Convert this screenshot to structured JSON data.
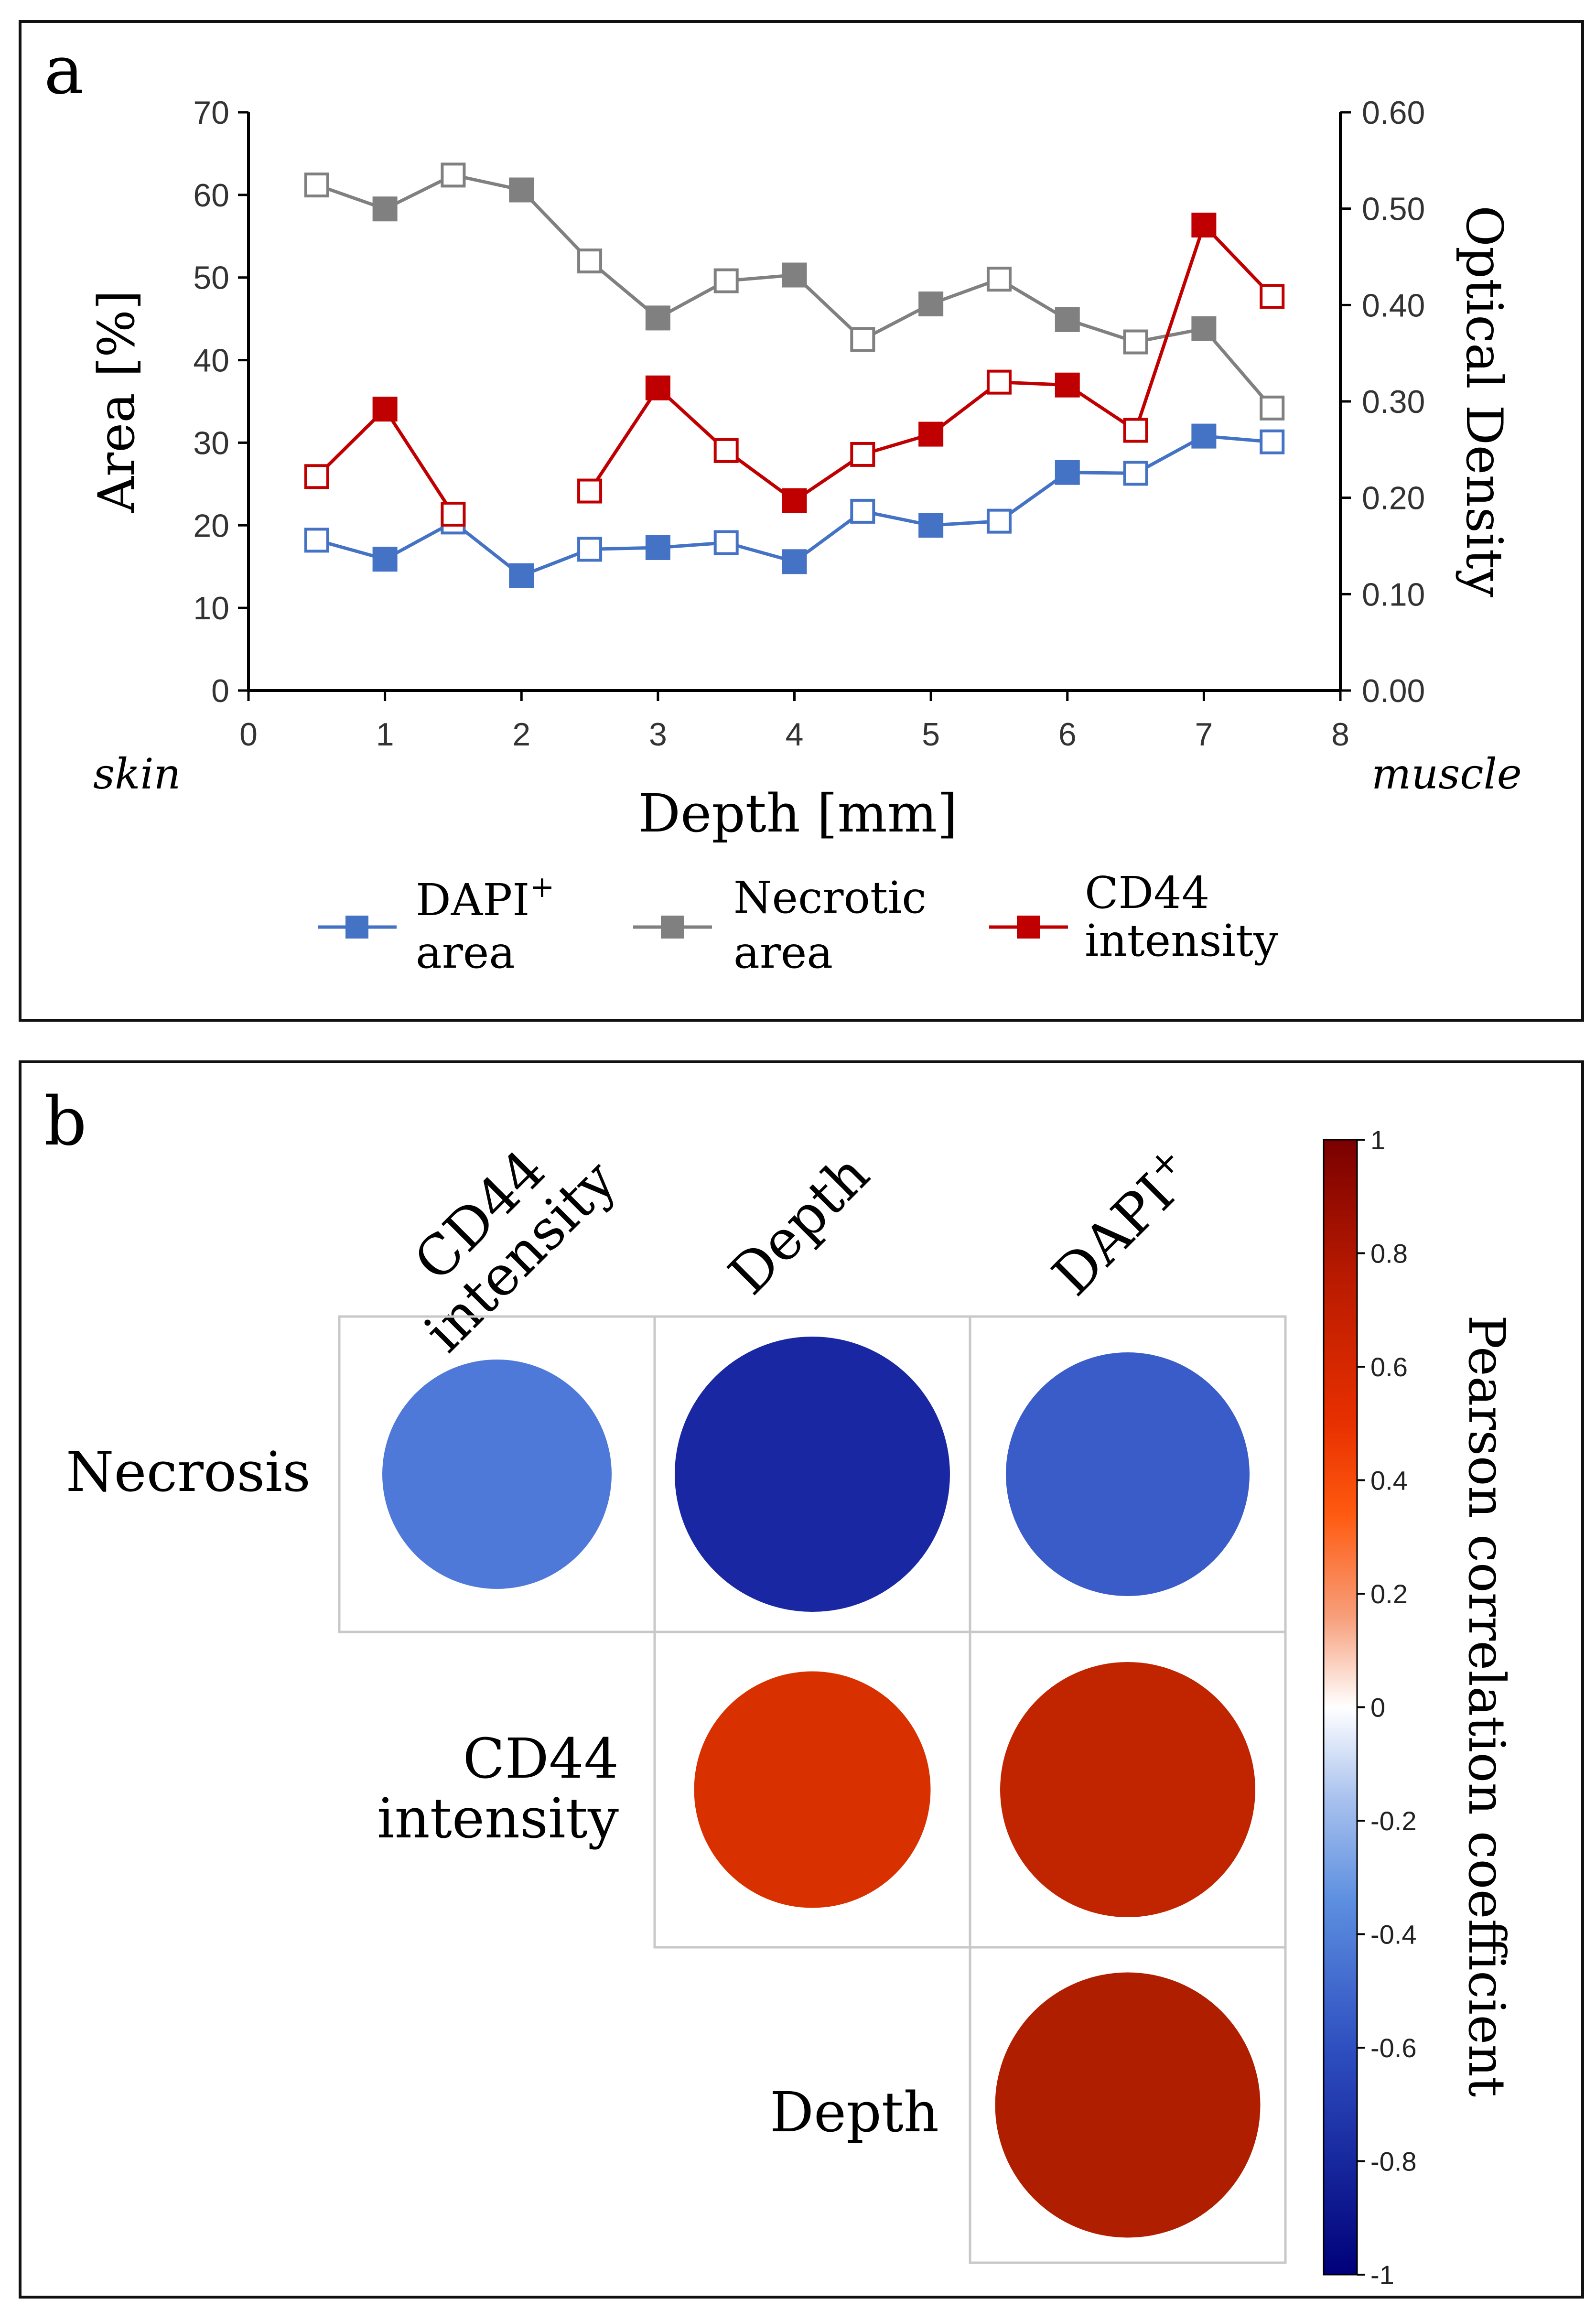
{
  "chart_data": [
    {
      "panel": "a",
      "type": "line",
      "xlabel": "Depth [mm]",
      "ylabel": "Area [%]",
      "y2label": "Optical Density",
      "x_left_note": "skin",
      "x_right_note": "muscle",
      "xlim": [
        0,
        8
      ],
      "ylim": [
        0,
        70
      ],
      "y2lim": [
        0,
        0.6
      ],
      "xticks": [
        "0",
        "1",
        "2",
        "3",
        "4",
        "5",
        "6",
        "7",
        "8"
      ],
      "yticks": [
        "0",
        "10",
        "20",
        "30",
        "40",
        "50",
        "60",
        "70"
      ],
      "y2ticks": [
        "0.00",
        "0.10",
        "0.20",
        "0.30",
        "0.40",
        "0.50",
        "0.60"
      ],
      "series": [
        {
          "name": "DAPI+ area",
          "label_main": "DAPI",
          "label_sup": "+",
          "label_second": "area",
          "axis": "left",
          "color": "#4472c4",
          "x": [
            0.5,
            1,
            1.5,
            2,
            2.5,
            3,
            3.5,
            4,
            4.5,
            5,
            5.5,
            6,
            6.5,
            7,
            7.5
          ],
          "y": [
            18.2,
            15.9,
            20.4,
            13.9,
            17.1,
            17.3,
            17.9,
            15.6,
            21.7,
            20.0,
            20.5,
            26.4,
            26.3,
            30.8,
            30.1
          ],
          "filled": [
            false,
            true,
            false,
            true,
            false,
            true,
            false,
            true,
            false,
            true,
            false,
            true,
            false,
            true,
            false
          ]
        },
        {
          "name": "Necrotic area",
          "label_main": "Necrotic",
          "label_sup": "",
          "label_second": "area",
          "axis": "left",
          "color": "#808080",
          "x": [
            0.5,
            1,
            1.5,
            2,
            2.5,
            3,
            3.5,
            4,
            4.5,
            5,
            5.5,
            6,
            6.5,
            7,
            7.5
          ],
          "y": [
            61.2,
            58.3,
            62.4,
            60.6,
            52.0,
            45.1,
            49.6,
            50.3,
            42.5,
            46.8,
            49.8,
            44.9,
            42.2,
            43.8,
            34.2
          ],
          "filled": [
            false,
            true,
            false,
            true,
            false,
            true,
            false,
            true,
            false,
            true,
            false,
            true,
            false,
            true,
            false
          ]
        },
        {
          "name": "CD44 intensity",
          "label_main": "CD44",
          "label_sup": "",
          "label_second": "intensity",
          "axis": "right",
          "color": "#c00000",
          "segments": [
            {
              "x": [
                0.5,
                1,
                1.5
              ],
              "y": [
                0.222,
                0.292,
                0.183
              ],
              "filled": [
                false,
                true,
                false
              ]
            },
            {
              "x": [
                2.5,
                3,
                3.5,
                4,
                4.5,
                5,
                5.5,
                6,
                6.5,
                7,
                7.5
              ],
              "y": [
                0.207,
                0.314,
                0.249,
                0.197,
                0.245,
                0.266,
                0.32,
                0.317,
                0.27,
                0.483,
                0.409
              ],
              "filled": [
                false,
                true,
                false,
                true,
                false,
                true,
                false,
                true,
                false,
                true,
                false
              ]
            }
          ]
        }
      ]
    },
    {
      "panel": "b",
      "type": "heatmap",
      "title": "",
      "columns": [
        "CD44 intensity",
        "Depth",
        "DAPI+"
      ],
      "rows": [
        "Necrosis",
        "CD44 intensity",
        "Depth"
      ],
      "cells": [
        {
          "row": "Necrosis",
          "col": "CD44 intensity",
          "value": -0.6,
          "color": "#4e79d8"
        },
        {
          "row": "Necrosis",
          "col": "Depth",
          "value": -0.92,
          "color": "#1a27a3"
        },
        {
          "row": "Necrosis",
          "col": "DAPI+",
          "value": -0.7,
          "color": "#3a5cc8"
        },
        {
          "row": "CD44 intensity",
          "col": "Depth",
          "value": 0.65,
          "color": "#d93000"
        },
        {
          "row": "CD44 intensity",
          "col": "DAPI+",
          "value": 0.78,
          "color": "#c02500"
        },
        {
          "row": "Depth",
          "col": "DAPI+",
          "value": 0.85,
          "color": "#b01e00"
        }
      ],
      "colorbar": {
        "label": "Pearson correlation coefficient",
        "range": [
          -1,
          1
        ],
        "ticks": [
          "1",
          "0.8",
          "0.6",
          "0.4",
          "0.2",
          "0",
          "-0.2",
          "-0.4",
          "-0.6",
          "-0.8",
          "-1"
        ]
      }
    }
  ],
  "panel_labels": {
    "a": "a",
    "b": "b"
  },
  "col_labels": {
    "c1_line1": "CD44",
    "c1_line2": "intensity",
    "c2": "Depth",
    "c3_main": "DAPI",
    "c3_sup": "+"
  },
  "row_labels": {
    "r1": "Necrosis",
    "r2_line1": "CD44",
    "r2_line2": "intensity",
    "r3": "Depth"
  }
}
